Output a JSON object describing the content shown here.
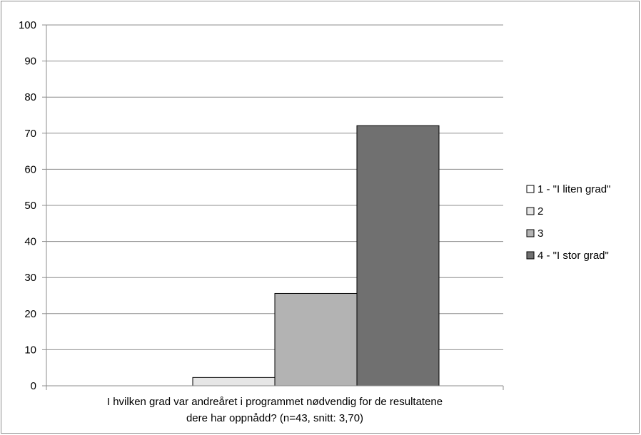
{
  "chart_data": {
    "type": "bar",
    "categories": [
      "I hvilken grad var andreåret i programmet nødvendig for de resultatene dere har oppnådd? (n=43, snitt: 3,70)"
    ],
    "category_lines": [
      "I hvilken grad var andreåret i programmet nødvendig for de resultatene",
      "dere har oppnådd? (n=43, snitt: 3,70)"
    ],
    "series": [
      {
        "name": "1 - \"I liten grad\"",
        "values": [
          0
        ],
        "color": "#ffffff"
      },
      {
        "name": "2",
        "values": [
          2.3
        ],
        "color": "#e6e6e6"
      },
      {
        "name": "3",
        "values": [
          25.6
        ],
        "color": "#b3b3b3"
      },
      {
        "name": "4 - \"I stor grad\"",
        "values": [
          72.1
        ],
        "color": "#707070"
      }
    ],
    "title": "",
    "xlabel": "",
    "ylabel": "",
    "ylim": [
      0,
      100
    ],
    "yticks": [
      "0",
      "10",
      "20",
      "30",
      "40",
      "50",
      "60",
      "70",
      "80",
      "90",
      "100"
    ],
    "grid": true,
    "legend_position": "right"
  }
}
